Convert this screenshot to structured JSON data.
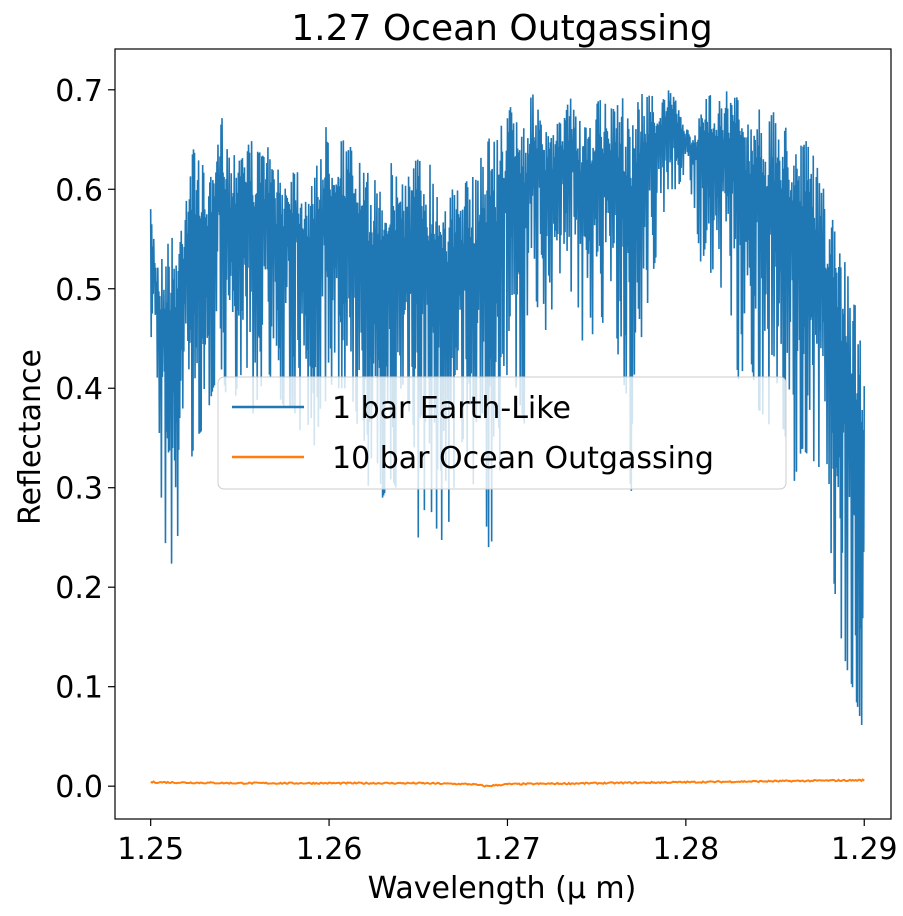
{
  "chart_data": {
    "type": "line",
    "title": "1.27 Ocean Outgassing",
    "xlabel": "Wavelength (μ m)",
    "ylabel": "Reflectance",
    "xlim": [
      1.248,
      1.2915
    ],
    "ylim": [
      -0.033,
      0.741
    ],
    "xticks": [
      1.25,
      1.26,
      1.27,
      1.28,
      1.29
    ],
    "xtick_labels": [
      "1.25",
      "1.26",
      "1.27",
      "1.28",
      "1.29"
    ],
    "yticks": [
      0.0,
      0.1,
      0.2,
      0.3,
      0.4,
      0.5,
      0.6,
      0.7
    ],
    "ytick_labels": [
      "0.0",
      "0.1",
      "0.2",
      "0.3",
      "0.4",
      "0.5",
      "0.6",
      "0.7"
    ],
    "grid": false,
    "legend_position": "center",
    "series": [
      {
        "name": "1 bar Earth-Like",
        "color": "#1f77b4",
        "x": [
          1.25,
          1.2505,
          1.251,
          1.2515,
          1.252,
          1.2525,
          1.253,
          1.2535,
          1.254,
          1.2545,
          1.255,
          1.2555,
          1.256,
          1.2565,
          1.257,
          1.2575,
          1.258,
          1.2585,
          1.259,
          1.2595,
          1.26,
          1.2605,
          1.261,
          1.2615,
          1.262,
          1.2625,
          1.263,
          1.2635,
          1.264,
          1.2645,
          1.265,
          1.2655,
          1.266,
          1.2665,
          1.267,
          1.2675,
          1.268,
          1.2685,
          1.269,
          1.2695,
          1.27,
          1.2705,
          1.271,
          1.2715,
          1.272,
          1.2725,
          1.273,
          1.2735,
          1.274,
          1.2745,
          1.275,
          1.2755,
          1.276,
          1.2765,
          1.277,
          1.2775,
          1.278,
          1.2785,
          1.279,
          1.2795,
          1.28,
          1.2805,
          1.281,
          1.2815,
          1.282,
          1.2825,
          1.283,
          1.2835,
          1.284,
          1.2845,
          1.285,
          1.2855,
          1.286,
          1.2865,
          1.287,
          1.2875,
          1.288,
          1.2885,
          1.289,
          1.2895,
          1.29
        ],
        "upper": [
          0.58,
          0.53,
          0.56,
          0.55,
          0.63,
          0.65,
          0.62,
          0.61,
          0.68,
          0.64,
          0.66,
          0.66,
          0.64,
          0.65,
          0.62,
          0.62,
          0.64,
          0.62,
          0.6,
          0.66,
          0.67,
          0.66,
          0.65,
          0.64,
          0.62,
          0.61,
          0.62,
          0.63,
          0.63,
          0.63,
          0.64,
          0.64,
          0.62,
          0.62,
          0.6,
          0.61,
          0.61,
          0.64,
          0.67,
          0.66,
          0.69,
          0.68,
          0.68,
          0.7,
          0.66,
          0.66,
          0.67,
          0.7,
          0.67,
          0.66,
          0.69,
          0.69,
          0.68,
          0.7,
          0.69,
          0.7,
          0.7,
          0.69,
          0.7,
          0.69,
          0.66,
          0.66,
          0.69,
          0.7,
          0.7,
          0.7,
          0.7,
          0.67,
          0.69,
          0.67,
          0.68,
          0.67,
          0.67,
          0.66,
          0.64,
          0.62,
          0.58,
          0.56,
          0.53,
          0.49,
          0.45
        ],
        "lower": [
          0.46,
          0.31,
          0.21,
          0.25,
          0.3,
          0.35,
          0.36,
          0.4,
          0.42,
          0.36,
          0.42,
          0.36,
          0.39,
          0.42,
          0.4,
          0.38,
          0.38,
          0.35,
          0.37,
          0.29,
          0.32,
          0.4,
          0.4,
          0.38,
          0.27,
          0.35,
          0.29,
          0.31,
          0.29,
          0.3,
          0.25,
          0.29,
          0.26,
          0.24,
          0.3,
          0.35,
          0.3,
          0.32,
          0.23,
          0.3,
          0.42,
          0.4,
          0.36,
          0.5,
          0.45,
          0.48,
          0.52,
          0.5,
          0.48,
          0.4,
          0.5,
          0.45,
          0.49,
          0.35,
          0.29,
          0.45,
          0.5,
          0.55,
          0.6,
          0.6,
          0.62,
          0.58,
          0.5,
          0.52,
          0.5,
          0.48,
          0.4,
          0.45,
          0.38,
          0.37,
          0.35,
          0.36,
          0.3,
          0.34,
          0.33,
          0.32,
          0.26,
          0.17,
          0.12,
          0.09,
          0.05
        ]
      },
      {
        "name": "10 bar Ocean Outgassing",
        "color": "#ff7f0e",
        "x": [
          1.25,
          1.255,
          1.26,
          1.265,
          1.268,
          1.2688,
          1.27,
          1.275,
          1.28,
          1.285,
          1.29
        ],
        "y": [
          0.004,
          0.003,
          0.003,
          0.003,
          0.002,
          0.0,
          0.002,
          0.003,
          0.004,
          0.005,
          0.006
        ]
      }
    ]
  }
}
